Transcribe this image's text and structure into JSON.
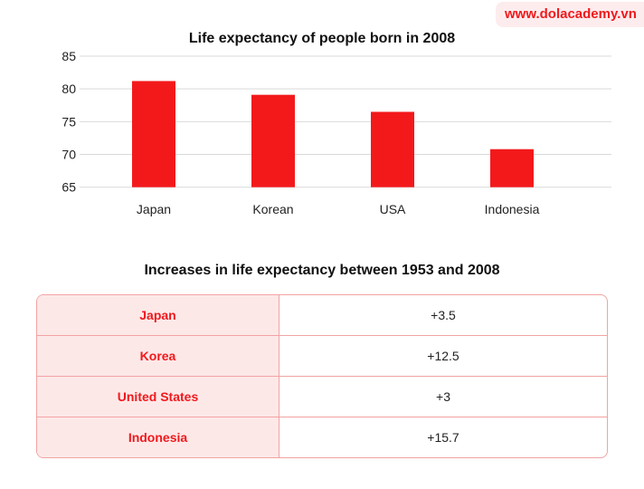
{
  "brand": "www.dolacademy.vn",
  "chart_data": {
    "type": "bar",
    "title": "Life expectancy of people born in 2008",
    "categories": [
      "Japan",
      "Korean",
      "USA",
      "Indonesia"
    ],
    "values": [
      81.2,
      79.1,
      76.5,
      70.8
    ],
    "ylim": [
      65,
      85
    ],
    "yticks": [
      65,
      70,
      75,
      80,
      85
    ],
    "grid": true,
    "color": "#f3191b"
  },
  "table": {
    "title": "Increases in life expectancy between 1953 and 2008",
    "rows": [
      {
        "country": "Japan",
        "value": "+3.5"
      },
      {
        "country": "Korea",
        "value": "+12.5"
      },
      {
        "country": "United States",
        "value": "+3"
      },
      {
        "country": "Indonesia",
        "value": "+15.7"
      }
    ]
  }
}
